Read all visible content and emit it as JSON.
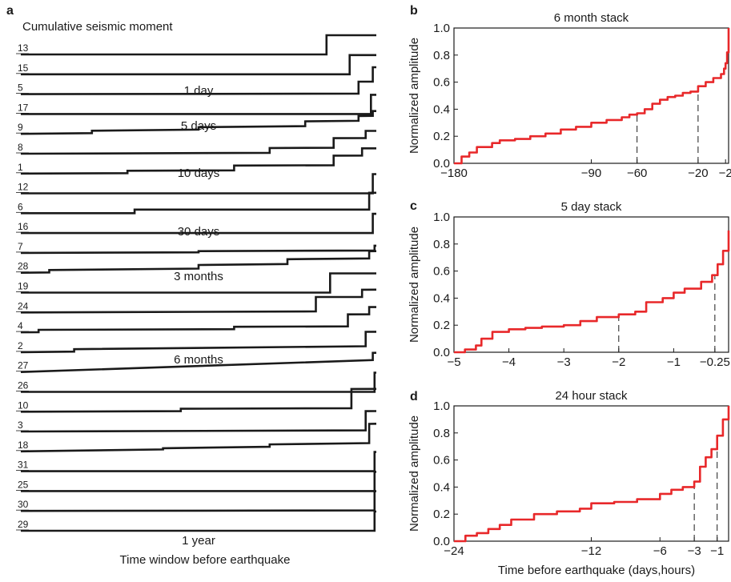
{
  "panel_a": {
    "letter": "a",
    "title": "Cumulative seismic moment",
    "xlabel": "Time window before earthquake",
    "traces": [
      {
        "id": "13",
        "start": 0.0,
        "steps": [
          [
            0.86,
            0.8
          ]
        ],
        "slope": 0.0
      },
      {
        "id": "15",
        "start": 0.0,
        "steps": [
          [
            0.925,
            0.8
          ]
        ],
        "slope": 0.0
      },
      {
        "id": "5",
        "start": 0.0,
        "steps": [
          [
            0.95,
            0.5
          ],
          [
            0.99,
            0.6
          ]
        ],
        "slope": 0.02
      },
      {
        "id": "17",
        "start": 0.0,
        "steps": [
          [
            0.985,
            0.8
          ]
        ],
        "slope": 0.0
      },
      {
        "id": "9",
        "start": 0.0,
        "steps": [
          [
            0.2,
            0.1
          ],
          [
            0.5,
            0.1
          ],
          [
            0.8,
            0.2
          ],
          [
            0.95,
            0.2
          ],
          [
            0.99,
            0.2
          ]
        ],
        "slope": 0.15
      },
      {
        "id": "8",
        "start": 0.0,
        "steps": [
          [
            0.7,
            0.2
          ],
          [
            0.88,
            0.4
          ],
          [
            0.97,
            0.3
          ]
        ],
        "slope": 0.05
      },
      {
        "id": "1",
        "start": 0.0,
        "steps": [
          [
            0.3,
            0.1
          ],
          [
            0.6,
            0.2
          ],
          [
            0.88,
            0.4
          ],
          [
            0.96,
            0.3
          ]
        ],
        "slope": 0.05
      },
      {
        "id": "12",
        "start": 0.0,
        "steps": [
          [
            0.99,
            0.8
          ]
        ],
        "slope": 0.0
      },
      {
        "id": "6",
        "start": 0.0,
        "steps": [
          [
            0.32,
            0.15
          ],
          [
            0.98,
            0.7
          ]
        ],
        "slope": 0.0
      },
      {
        "id": "16",
        "start": 0.0,
        "steps": [
          [
            0.99,
            0.8
          ]
        ],
        "slope": 0.0
      },
      {
        "id": "7",
        "start": 0.0,
        "steps": [
          [
            0.5,
            0.05
          ],
          [
            0.995,
            0.2
          ]
        ],
        "slope": 0.05
      },
      {
        "id": "28",
        "start": 0.0,
        "steps": [
          [
            0.08,
            0.1
          ],
          [
            0.5,
            0.15
          ],
          [
            0.75,
            0.2
          ],
          [
            0.98,
            0.3
          ]
        ],
        "slope": 0.15
      },
      {
        "id": "19",
        "start": 0.0,
        "steps": [
          [
            0.87,
            0.8
          ]
        ],
        "slope": 0.0
      },
      {
        "id": "24",
        "start": 0.0,
        "steps": [
          [
            0.83,
            0.6
          ],
          [
            0.96,
            0.3
          ]
        ],
        "slope": 0.05
      },
      {
        "id": "4",
        "start": 0.0,
        "steps": [
          [
            0.05,
            0.1
          ],
          [
            0.6,
            0.1
          ],
          [
            0.92,
            0.5
          ],
          [
            0.98,
            0.3
          ]
        ],
        "slope": 0.05
      },
      {
        "id": "2",
        "start": 0.0,
        "steps": [
          [
            0.15,
            0.1
          ],
          [
            0.97,
            0.6
          ]
        ],
        "slope": 0.15
      },
      {
        "id": "27",
        "start": 0.0,
        "steps": [
          [
            0.99,
            0.3
          ]
        ],
        "slope": 0.5
      },
      {
        "id": "26",
        "start": 0.0,
        "steps": [
          [
            0.995,
            0.8
          ]
        ],
        "slope": 0.0
      },
      {
        "id": "10",
        "start": 0.0,
        "steps": [
          [
            0.45,
            0.1
          ],
          [
            0.93,
            0.8
          ]
        ],
        "slope": 0.05
      },
      {
        "id": "3",
        "start": 0.0,
        "steps": [
          [
            0.97,
            0.8
          ]
        ],
        "slope": 0.05
      },
      {
        "id": "18",
        "start": 0.0,
        "steps": [
          [
            0.4,
            0.05
          ],
          [
            0.7,
            0.1
          ],
          [
            0.98,
            0.8
          ]
        ],
        "slope": 0.2
      },
      {
        "id": "31",
        "start": 0.0,
        "steps": [
          [
            0.995,
            0.8
          ]
        ],
        "slope": 0.0
      },
      {
        "id": "25",
        "start": 0.0,
        "steps": [
          [
            0.995,
            0.8
          ]
        ],
        "slope": 0.0
      },
      {
        "id": "30",
        "start": 0.0,
        "steps": [
          [
            0.995,
            0.8
          ]
        ],
        "slope": 0.02
      },
      {
        "id": "29",
        "start": 0.0,
        "steps": [
          [
            0.995,
            0.8
          ]
        ],
        "slope": 0.0
      }
    ],
    "window_labels": [
      "1 day",
      "5 days",
      "10 days",
      "30 days",
      "3 months",
      "6 months",
      "1 year"
    ]
  },
  "chart_data": [
    {
      "type": "line",
      "panel": "b",
      "title": "6 month stack",
      "ylabel": "Normalized amplitude",
      "xlim": [
        -180,
        0
      ],
      "ylim": [
        0,
        1
      ],
      "xticks": [
        -180,
        -90,
        -60,
        -20,
        -2
      ],
      "yticks": [
        "0.0",
        "0.2",
        "0.4",
        "0.6",
        "0.8",
        "1.0"
      ],
      "dashed_markers": [
        -60,
        -20
      ],
      "color": "#e8282a",
      "x": [
        -180,
        -175,
        -170,
        -165,
        -155,
        -150,
        -140,
        -130,
        -120,
        -110,
        -100,
        -90,
        -80,
        -70,
        -65,
        -60,
        -55,
        -50,
        -45,
        -40,
        -35,
        -30,
        -25,
        -20,
        -15,
        -10,
        -5,
        -3,
        -2,
        -1,
        0
      ],
      "y": [
        0.0,
        0.05,
        0.08,
        0.12,
        0.15,
        0.17,
        0.18,
        0.2,
        0.22,
        0.25,
        0.27,
        0.3,
        0.32,
        0.34,
        0.36,
        0.37,
        0.4,
        0.44,
        0.47,
        0.49,
        0.5,
        0.52,
        0.53,
        0.57,
        0.6,
        0.63,
        0.66,
        0.7,
        0.74,
        0.82,
        1.0
      ]
    },
    {
      "type": "line",
      "panel": "c",
      "title": "5 day stack",
      "ylabel": "Normalized amplitude",
      "xlim": [
        -5,
        0
      ],
      "ylim": [
        0,
        1
      ],
      "xticks": [
        -5,
        -4,
        -3,
        -2,
        -1,
        -0.25
      ],
      "xticklabels": [
        "−5",
        "−4",
        "−3",
        "−2",
        "−1",
        "−0.25"
      ],
      "yticks": [
        "0.0",
        "0.2",
        "0.4",
        "0.6",
        "0.8",
        "1.0"
      ],
      "dashed_markers": [
        -2,
        -0.25
      ],
      "color": "#e8282a",
      "x": [
        -5,
        -4.8,
        -4.6,
        -4.5,
        -4.3,
        -4.0,
        -3.7,
        -3.4,
        -3.0,
        -2.7,
        -2.4,
        -2.0,
        -1.7,
        -1.5,
        -1.2,
        -1.0,
        -0.8,
        -0.5,
        -0.3,
        -0.2,
        -0.1,
        0
      ],
      "y": [
        0.0,
        0.02,
        0.05,
        0.1,
        0.15,
        0.17,
        0.18,
        0.19,
        0.2,
        0.23,
        0.26,
        0.28,
        0.3,
        0.37,
        0.4,
        0.44,
        0.47,
        0.52,
        0.57,
        0.65,
        0.75,
        0.9
      ]
    },
    {
      "type": "line",
      "panel": "d",
      "title": "24 hour stack",
      "ylabel": "Normalized amplitude",
      "xlim": [
        -24,
        0
      ],
      "ylim": [
        0,
        1
      ],
      "xticks": [
        -24,
        -12,
        -6,
        -3,
        -1
      ],
      "yticks": [
        "0.0",
        "0.2",
        "0.4",
        "0.6",
        "0.8",
        "1.0"
      ],
      "dashed_markers": [
        -3,
        -1
      ],
      "color": "#e8282a",
      "x": [
        -24,
        -23,
        -22,
        -21,
        -20,
        -19,
        -17,
        -15,
        -13,
        -12,
        -10,
        -8,
        -6,
        -5,
        -4,
        -3,
        -2.5,
        -2,
        -1.5,
        -1,
        -0.5,
        0
      ],
      "y": [
        0.0,
        0.04,
        0.06,
        0.09,
        0.12,
        0.16,
        0.2,
        0.22,
        0.24,
        0.28,
        0.29,
        0.31,
        0.35,
        0.38,
        0.4,
        0.44,
        0.55,
        0.62,
        0.68,
        0.78,
        0.9,
        1.0
      ]
    }
  ],
  "panel_b_letter": "b",
  "panel_c_letter": "c",
  "panel_d_letter": "d",
  "shared_xlabel": "Time before earthquake (days,hours)"
}
